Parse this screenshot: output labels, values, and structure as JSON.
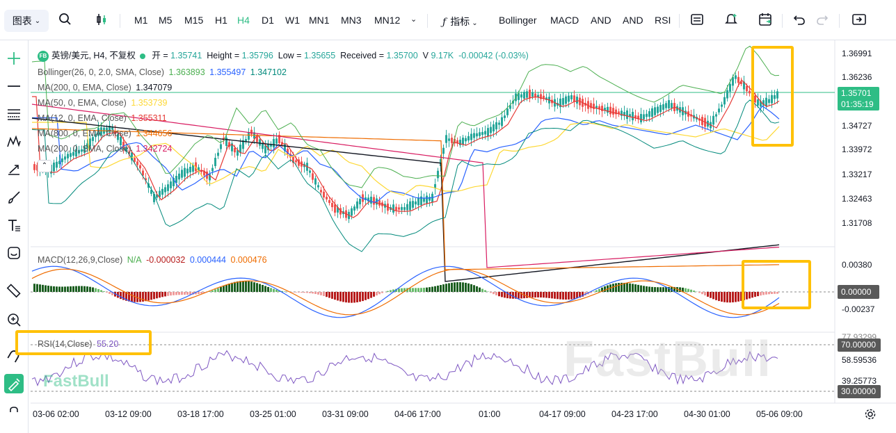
{
  "toolbar": {
    "chart_type": "图表",
    "timeframes": [
      "M1",
      "M5",
      "M15",
      "H1",
      "H4",
      "D1",
      "W1",
      "MN1",
      "MN3",
      "MN12"
    ],
    "active_timeframe": "H4",
    "indicators_label": "指标",
    "indicator_buttons": [
      "Bollinger",
      "MACD",
      "AND",
      "AND",
      "RSI"
    ]
  },
  "legend": {
    "symbol": "英镑/美元, H4, 不复权",
    "badge": "FB",
    "open_label": "开 =",
    "open": "1.35741",
    "high_label": "Height =",
    "high": "1.35796",
    "low_label": "Low =",
    "low": "1.35655",
    "close_label": "Received =",
    "close": "1.35700",
    "volume_label": "V",
    "volume": "9.17K",
    "change": "-0.00042 (-0.03%)",
    "bollinger": {
      "label": "Bollinger(26, 0, 2.0, SMA, Close)",
      "v1": "1.363893",
      "v2": "1.355497",
      "v3": "1.347102"
    },
    "ma200ema": {
      "label": "MA(200, 0, EMA, Close)",
      "value": "1.347079"
    },
    "ma50ema": {
      "label": "MA(50, 0, EMA, Close)",
      "value": "1.353739"
    },
    "ma12ema": {
      "label": "MA(12, 0, EMA, Close)",
      "value": "1.355311"
    },
    "ma800ema": {
      "label": "MA(800, 0, EMA, Close)",
      "value": "1.344656"
    },
    "ma200sma": {
      "label": "MA(200, 0, SMA, Close)",
      "value": "1.342724"
    }
  },
  "price_axis": [
    "1.36991",
    "1.36236",
    "1.35701",
    "01:35:19",
    "1.34727",
    "1.33972",
    "1.33217",
    "1.32463",
    "1.31708"
  ],
  "macd": {
    "label": "MACD(12,26,9,Close)",
    "na": "N/A",
    "v1": "-0.000032",
    "v2": "0.000444",
    "v3": "0.000476"
  },
  "macd_axis": [
    "0.00380",
    "0.00000",
    "-0.00237"
  ],
  "rsi": {
    "label": "RSI(14,Close)",
    "value": "55.20"
  },
  "rsi_axis": [
    "77.93299",
    "70.00000",
    "58.59536",
    "39.25773",
    "30.00000"
  ],
  "time_axis": [
    "03-06 02:00",
    "03-12 09:00",
    "03-18 17:00",
    "03-25 01:00",
    "03-31 09:00",
    "04-06 17:00",
    "01:00",
    "04-17 09:00",
    "04-23 17:00",
    "04-30 01:00",
    "05-06 09:00"
  ],
  "watermark": "FastBull",
  "colors": {
    "up": "#26a69a",
    "down": "#ef5350",
    "accent": "#2ebd85",
    "highlight": "#ffc107"
  }
}
